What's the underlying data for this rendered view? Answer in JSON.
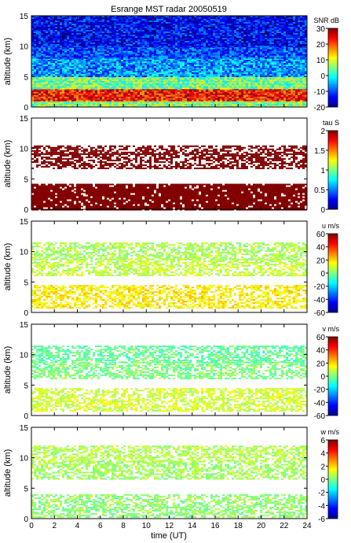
{
  "chart_data": {
    "type": "heatmap",
    "title": "Esrange MST radar 20050519",
    "xlabel": "time (UT)",
    "xlim": [
      0,
      24
    ],
    "xticks": [
      0,
      2,
      4,
      6,
      8,
      10,
      12,
      14,
      16,
      18,
      20,
      22,
      24
    ],
    "panels": [
      {
        "id": "snr",
        "ylabel": "altitude (km)",
        "ylim": [
          0,
          15
        ],
        "yticks": [
          0,
          5,
          10,
          15
        ],
        "colorbar_label": "SNR dB",
        "clim": [
          -20,
          30
        ],
        "cticks": [
          30,
          20,
          10,
          0,
          -10,
          -20
        ],
        "layers": [
          {
            "alt": [
              0.0,
              1.0
            ],
            "value": 6
          },
          {
            "alt": [
              1.0,
              3.0
            ],
            "value": 22
          },
          {
            "alt": [
              3.0,
              5.0
            ],
            "value": 5
          },
          {
            "alt": [
              5.0,
              8.0
            ],
            "value": -6
          },
          {
            "alt": [
              8.0,
              10.0
            ],
            "value": -10
          },
          {
            "alt": [
              10.0,
              15.0
            ],
            "value": -14
          }
        ]
      },
      {
        "id": "tau",
        "ylabel": "altitude (km)",
        "ylim": [
          0,
          15
        ],
        "yticks": [
          0,
          5,
          10,
          15
        ],
        "colorbar_label": "tau S",
        "clim": [
          0,
          2
        ],
        "cticks": [
          2,
          1.5,
          1,
          0.5,
          0
        ],
        "layers": [
          {
            "alt": [
              0.0,
              4.2
            ],
            "value": 2.0
          },
          {
            "alt": [
              6.8,
              9.2
            ],
            "value": 2.0
          },
          {
            "alt": [
              9.2,
              10.5
            ],
            "value": 2.0
          }
        ]
      },
      {
        "id": "u",
        "ylabel": "altitude (km)",
        "ylim": [
          0,
          15
        ],
        "yticks": [
          0,
          5,
          10,
          15
        ],
        "colorbar_label": "u m/s",
        "clim": [
          -60,
          60
        ],
        "cticks": [
          60,
          40,
          20,
          0,
          -20,
          -40,
          -60
        ],
        "layers": [
          {
            "alt": [
              0.8,
              4.5
            ],
            "value": 17
          },
          {
            "alt": [
              6.0,
              8.8
            ],
            "value": 8
          },
          {
            "alt": [
              8.8,
              11.5
            ],
            "value": 5
          }
        ]
      },
      {
        "id": "v",
        "ylabel": "altitude (km)",
        "ylim": [
          0,
          15
        ],
        "yticks": [
          0,
          5,
          10,
          15
        ],
        "colorbar_label": "v m/s",
        "clim": [
          -60,
          60
        ],
        "cticks": [
          60,
          40,
          20,
          0,
          -20,
          -40,
          -60
        ],
        "layers": [
          {
            "alt": [
              0.8,
              4.5
            ],
            "value": 10
          },
          {
            "alt": [
              6.0,
              8.8
            ],
            "value": 0
          },
          {
            "alt": [
              8.8,
              11.5
            ],
            "value": -3
          }
        ]
      },
      {
        "id": "w",
        "ylabel": "altitude (km)",
        "ylim": [
          0,
          15
        ],
        "yticks": [
          0,
          5,
          10,
          15
        ],
        "colorbar_label": "w m/s",
        "clim": [
          -6,
          6
        ],
        "cticks": [
          6,
          4,
          2,
          0,
          -2,
          -4,
          -6
        ],
        "layers": [
          {
            "alt": [
              0.3,
              4.0
            ],
            "value": 0.2
          },
          {
            "alt": [
              6.5,
              9.5
            ],
            "value": 0.4
          },
          {
            "alt": [
              9.5,
              12.0
            ],
            "value": 0.6
          }
        ]
      }
    ]
  }
}
